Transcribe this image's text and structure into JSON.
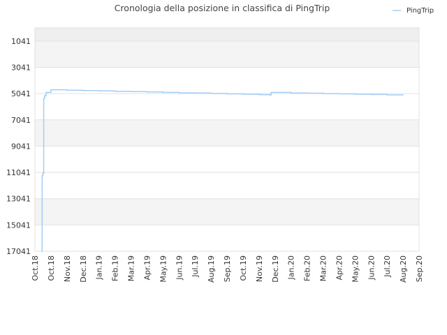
{
  "chart_data": {
    "type": "line",
    "title": "Cronologia della posizione in classifica di PingTrip",
    "xlabel": "",
    "ylabel": "",
    "legend": {
      "placement": "top-right"
    },
    "y_axis": {
      "inverted": true,
      "ticks": [
        1041,
        3041,
        5041,
        7041,
        9041,
        11041,
        13041,
        15041,
        17041
      ],
      "ylim": [
        17041,
        41
      ]
    },
    "x_axis": {
      "ticks": [
        "Oct.18",
        "Oct.18",
        "Nov.18",
        "Dec.18",
        "Jan.19",
        "Feb.19",
        "Mar.19",
        "Apr.19",
        "May.19",
        "Jun.19",
        "Jul.19",
        "Aug.19",
        "Sep.19",
        "Oct.19",
        "Nov.19",
        "Dec.19",
        "Jan.20",
        "Feb.20",
        "Mar.20",
        "Apr.20",
        "May.20",
        "Jun.20",
        "Jul.20",
        "Aug.20",
        "Sep.20"
      ]
    },
    "band_colors": [
      "#efefef",
      "#f4f4f4",
      "#ffffff"
    ],
    "grid": true,
    "series": [
      {
        "name": "PingTrip",
        "color": "#a3cdf5",
        "points": [
          [
            0.4,
            17041
          ],
          [
            0.45,
            11300
          ],
          [
            0.5,
            11100
          ],
          [
            0.55,
            5400
          ],
          [
            0.6,
            5200
          ],
          [
            0.7,
            4950
          ],
          [
            1.0,
            4750
          ],
          [
            1.5,
            4750
          ],
          [
            2.0,
            4780
          ],
          [
            3.0,
            4810
          ],
          [
            4.0,
            4840
          ],
          [
            5.0,
            4870
          ],
          [
            6.0,
            4890
          ],
          [
            7.0,
            4920
          ],
          [
            8.0,
            4950
          ],
          [
            9.0,
            4980
          ],
          [
            10.0,
            5000
          ],
          [
            11.0,
            5030
          ],
          [
            12.0,
            5060
          ],
          [
            13.0,
            5090
          ],
          [
            14.0,
            5120
          ],
          [
            14.7,
            5150
          ],
          [
            14.75,
            4950
          ],
          [
            16.0,
            4990
          ],
          [
            17.0,
            5010
          ],
          [
            18.0,
            5040
          ],
          [
            19.0,
            5060
          ],
          [
            20.0,
            5090
          ],
          [
            21.0,
            5110
          ],
          [
            22.0,
            5140
          ],
          [
            23.0,
            5160
          ]
        ]
      }
    ]
  }
}
